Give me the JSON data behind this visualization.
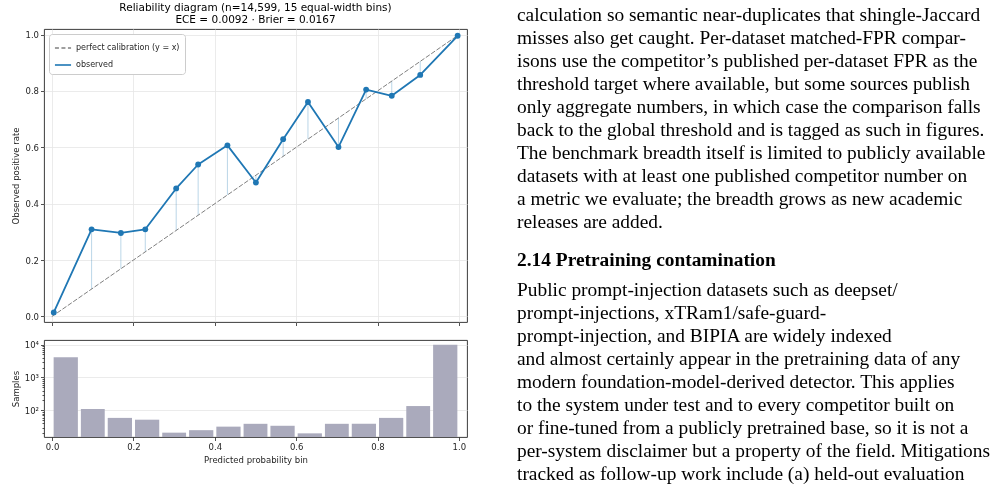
{
  "chart_data": [
    {
      "type": "line",
      "title": "Reliability diagram (n=14,599, 15 equal-width bins)",
      "subtitle": "ECE = 0.0092  ·  Brier = 0.0167",
      "ylabel": "Observed positive rate",
      "xlim": [
        -0.02,
        1.02
      ],
      "ylim": [
        -0.02,
        1.02
      ],
      "xticks": [
        {
          "value": 0,
          "label": null
        },
        {
          "value": 0.2,
          "label": null
        },
        {
          "value": 0.4,
          "label": null
        },
        {
          "value": 0.6,
          "label": null
        },
        {
          "value": 0.8,
          "label": null
        },
        {
          "value": 1,
          "label": null
        }
      ],
      "yticks": [
        {
          "value": 0,
          "label": "0.0"
        },
        0.2,
        0.4,
        0.6,
        0.8,
        {
          "value": 1,
          "label": "1.0"
        }
      ],
      "tick_labels": "y",
      "grid": true,
      "legend": "top left",
      "series": [
        {
          "name": "perfect calibration (y = x)",
          "color": "#808080",
          "line_style": "dashed",
          "marker": "none",
          "x": [
            0,
            1
          ],
          "values": [
            0,
            1
          ]
        },
        {
          "name": "observed",
          "color": "#1f77b4",
          "line_style": "solid",
          "marker": "circle",
          "x": [
            0.004,
            0.097,
            0.169,
            0.229,
            0.305,
            0.359,
            0.431,
            0.501,
            0.568,
            0.629,
            0.704,
            0.772,
            0.835,
            0.905,
            0.997
          ],
          "values": [
            0.014,
            0.309,
            0.296,
            0.309,
            0.454,
            0.539,
            0.607,
            0.475,
            0.629,
            0.761,
            0.601,
            0.805,
            0.783,
            0.857,
            0.996
          ],
          "errors": [
            null,
            [
              0.097,
              0.309
            ],
            [
              0.169,
              0.296
            ],
            [
              0.229,
              0.309
            ],
            [
              0.305,
              0.454
            ],
            [
              0.359,
              0.539
            ],
            [
              0.431,
              0.607
            ],
            [
              0.475,
              0.501
            ],
            [
              0.568,
              0.629
            ],
            [
              0.629,
              0.761
            ],
            [
              0.601,
              0.704
            ],
            [
              0.772,
              0.805
            ],
            [
              0.783,
              0.835
            ],
            [
              0.857,
              0.905
            ],
            null
          ]
        }
      ]
    },
    {
      "type": "histogram",
      "xlabel": "Predicted probability bin",
      "ylabel": "Samples",
      "bins": [
        0,
        0.067,
        0.133,
        0.2,
        0.267,
        0.333,
        0.4,
        0.467,
        0.533,
        0.6,
        0.667,
        0.733,
        0.8,
        0.867,
        0.933,
        1
      ],
      "values": [
        4100,
        110,
        59,
        52,
        21,
        25,
        32,
        39,
        34,
        20,
        39,
        39,
        59,
        135,
        9800
      ],
      "color": "#aaaabc",
      "log": "y",
      "xlim": [
        -0.02,
        1.02
      ],
      "ylim": [
        15.5,
        13700
      ],
      "xticks": [
        {
          "value": 0,
          "label": "0.0"
        },
        0.2,
        0.4,
        0.6,
        0.8,
        {
          "value": 1,
          "label": "1.0"
        }
      ],
      "yticks": [
        {
          "value": 20,
          "label": null
        },
        {
          "value": 30,
          "label": null
        },
        {
          "value": 40,
          "label": null
        },
        {
          "value": 50,
          "label": null
        },
        {
          "value": 60,
          "label": null
        },
        {
          "value": 70,
          "label": null
        },
        {
          "value": 80,
          "label": null
        },
        {
          "value": 90,
          "label": null
        },
        {
          "value": 100,
          "label": "10²"
        },
        {
          "value": 200,
          "label": null
        },
        {
          "value": 300,
          "label": null
        },
        {
          "value": 400,
          "label": null
        },
        {
          "value": 500,
          "label": null
        },
        {
          "value": 600,
          "label": null
        },
        {
          "value": 700,
          "label": null
        },
        {
          "value": 800,
          "label": null
        },
        {
          "value": 900,
          "label": null
        },
        {
          "value": 1000,
          "label": "10³"
        },
        {
          "value": 2000,
          "label": null
        },
        {
          "value": 3000,
          "label": null
        },
        {
          "value": 4000,
          "label": null
        },
        {
          "value": 5000,
          "label": null
        },
        {
          "value": 6000,
          "label": null
        },
        {
          "value": 7000,
          "label": null
        },
        {
          "value": 8000,
          "label": null
        },
        {
          "value": 9000,
          "label": null
        },
        {
          "value": 10000,
          "label": "10⁴"
        }
      ],
      "grid": "y"
    },
    {
      "type": "other",
      "annotations": [
        "calculation so semantic near-duplicates that shingle-Jaccard",
        "misses also get caught.  Per-dataset matched-FPR compar-",
        "isons use the competitor’s published per-dataset FPR as the",
        "threshold target where available, but some sources publish",
        "only aggregate numbers, in which case the comparison falls",
        "back to the global threshold and is tagged as such in figures.",
        "The benchmark breadth itself is limited to publicly available",
        "datasets with at least one published competitor number on",
        "a metric we evaluate; the breadth grows as new academic",
        "releases are added."
      ]
    },
    {
      "type": "other",
      "title": "2.14  Pretraining contamination",
      "annotations": [
        "Public prompt-injection datasets such as deepset/",
        "prompt-injections, xTRam1/safe-guard-",
        "prompt-injection, and BIPIA are widely indexed",
        "and almost certainly appear in the pretraining data of any",
        "modern foundation-model-derived detector.  This applies",
        "to the system under test and to every competitor built on",
        "or fine-tuned from a publicly pretrained base, so it is not a",
        "per-system disclaimer but a property of the field. Mitigations",
        "tracked as follow-up work include (a) held-out evaluation"
      ]
    }
  ]
}
